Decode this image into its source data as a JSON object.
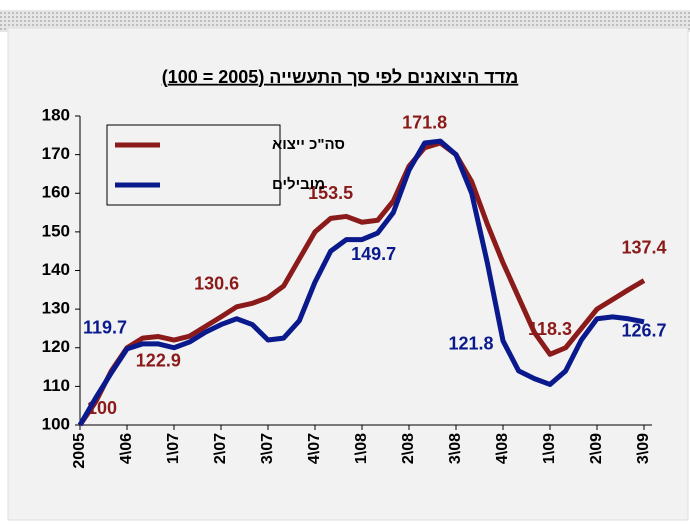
{
  "chart_data": {
    "type": "line",
    "title": "מדד היצואנים לפי סך התעשייה (2005 = 100)",
    "categories": [
      "2005",
      null,
      null,
      "4\\06",
      null,
      null,
      "1\\07",
      null,
      null,
      "2\\07",
      null,
      null,
      "3\\07",
      null,
      null,
      "4\\07",
      null,
      null,
      "1\\08",
      null,
      null,
      "2\\08",
      null,
      null,
      "3\\08",
      null,
      null,
      "4\\08",
      null,
      null,
      "1\\09",
      null,
      null,
      "2\\09",
      null,
      null,
      "3\\09"
    ],
    "series": [
      {
        "name": "סה\"כ ייצוא",
        "color": "#8b1a1a",
        "values": [
          100,
          106,
          114,
          120,
          122.5,
          122.9,
          122,
          123,
          125.5,
          128,
          130.6,
          131.5,
          133,
          136,
          143,
          150,
          153.5,
          154,
          152.5,
          153,
          158,
          167,
          171.8,
          173,
          170,
          163,
          152,
          142,
          133,
          124,
          118.3,
          120,
          125,
          130,
          132.5,
          135,
          137.4
        ],
        "value_labels": [
          "100",
          null,
          null,
          null,
          null,
          "122.9",
          null,
          null,
          null,
          null,
          "130.6",
          null,
          null,
          null,
          null,
          null,
          "153.5",
          null,
          null,
          null,
          null,
          null,
          "171.8",
          null,
          null,
          null,
          null,
          null,
          null,
          null,
          "118.3",
          null,
          null,
          null,
          null,
          null,
          "137.4"
        ]
      },
      {
        "name": "מובילים",
        "color": "#0a1a8c",
        "values": [
          100,
          107,
          113.5,
          119.7,
          121,
          121,
          120,
          121.5,
          124,
          126,
          127.5,
          126,
          122,
          122.5,
          127,
          137,
          145,
          148,
          148,
          149.7,
          155,
          166,
          173,
          173.5,
          170,
          160,
          142,
          121.8,
          114,
          112,
          110.5,
          114,
          122,
          127.5,
          128,
          127.5,
          126.7
        ],
        "value_labels": [
          null,
          null,
          null,
          "119.7",
          null,
          null,
          null,
          null,
          null,
          null,
          null,
          null,
          null,
          null,
          null,
          null,
          null,
          null,
          null,
          "149.7",
          null,
          null,
          null,
          null,
          null,
          null,
          null,
          "121.8",
          null,
          null,
          null,
          null,
          null,
          null,
          null,
          null,
          "126.7"
        ]
      }
    ],
    "ylim": [
      100,
      180
    ],
    "yticks": [
      100,
      110,
      120,
      130,
      140,
      150,
      160,
      170,
      180
    ]
  }
}
